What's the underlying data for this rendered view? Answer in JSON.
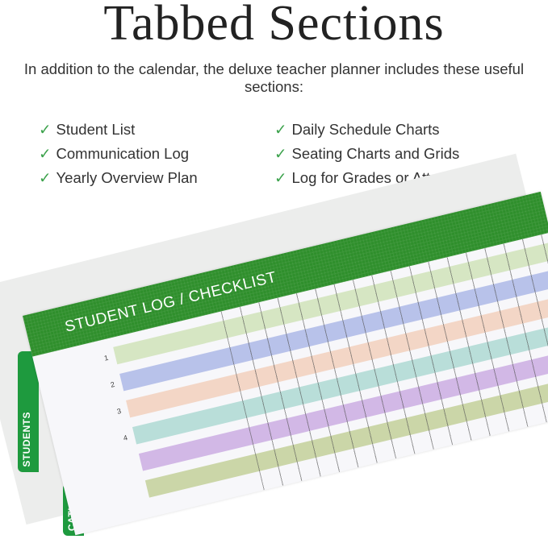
{
  "heading": "Tabbed Sections",
  "intro": "In addition to the calendar, the deluxe teacher planner includes these useful sections:",
  "check_icon": "checkmark-icon",
  "check_color": "#3aa14a",
  "sections_left": [
    "Student List",
    "Communication Log",
    "Yearly Overview Plan"
  ],
  "sections_right": [
    "Daily Schedule Charts",
    "Seating Charts and Grids",
    "Log for Grades or Attendance"
  ],
  "photo": {
    "header": "STUDENT LOG / CHECKLIST",
    "header_color": "#2f8f2c",
    "tabs": [
      "STUDENTS",
      "CATION"
    ],
    "row_numbers": [
      "1",
      "2",
      "3",
      "4"
    ],
    "band_colors": [
      "#d6e6c3",
      "#b8c2ea",
      "#f3d6c6",
      "#b9ded9",
      "#d2b8e6",
      "#cbd6a8"
    ]
  }
}
